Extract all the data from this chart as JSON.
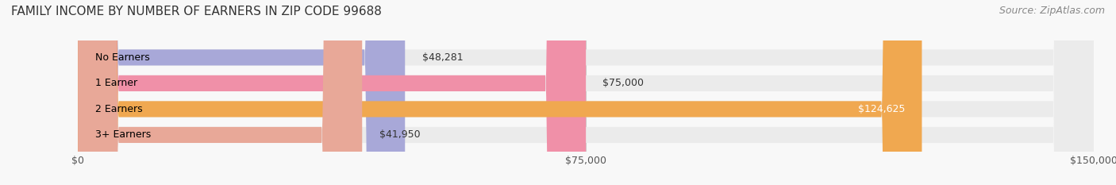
{
  "title": "FAMILY INCOME BY NUMBER OF EARNERS IN ZIP CODE 99688",
  "source": "Source: ZipAtlas.com",
  "categories": [
    "No Earners",
    "1 Earner",
    "2 Earners",
    "3+ Earners"
  ],
  "values": [
    48281,
    75000,
    124625,
    41950
  ],
  "labels": [
    "$48,281",
    "$75,000",
    "$124,625",
    "$41,950"
  ],
  "bar_colors": [
    "#a8a8d8",
    "#f090a8",
    "#f0a850",
    "#e8a898"
  ],
  "bar_bg_color": "#ebebeb",
  "label_colors": [
    "#333333",
    "#333333",
    "#ffffff",
    "#333333"
  ],
  "xlim": [
    0,
    150000
  ],
  "xticks": [
    0,
    75000,
    150000
  ],
  "xticklabels": [
    "$0",
    "$75,000",
    "$150,000"
  ],
  "title_fontsize": 11,
  "source_fontsize": 9,
  "bar_label_fontsize": 9,
  "category_fontsize": 9,
  "background_color": "#f8f8f8",
  "bar_height": 0.62
}
